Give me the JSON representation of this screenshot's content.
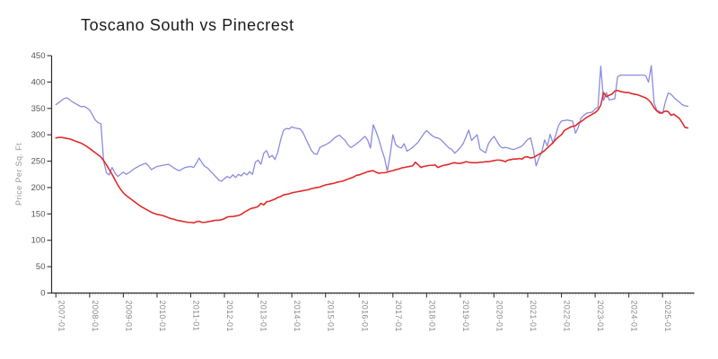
{
  "title": "Toscano South vs Pinecrest",
  "chart_data": {
    "type": "line",
    "title": "Toscano South vs Pinecrest",
    "xlabel": "",
    "ylabel": "Price Per Sq. Ft",
    "ylim": [
      0,
      450
    ],
    "y_ticks": [
      0,
      50,
      100,
      150,
      200,
      250,
      300,
      350,
      400,
      450
    ],
    "x_start": "2007-01",
    "x_interval": "monthly",
    "x_tick_labels": [
      "2007-01",
      "2008-01",
      "2009-01",
      "2010-01",
      "2011-01",
      "2012-01",
      "2013-01",
      "2014-01",
      "2015-01",
      "2016-01",
      "2017-01",
      "2018-01",
      "2019-01",
      "2020-01",
      "2021-01",
      "2022-01",
      "2023-01",
      "2024-01",
      "2025-01"
    ],
    "grid": false,
    "legend_position": "none",
    "series": [
      {
        "name": "Toscano South",
        "color": "#8b8be0",
        "values": [
          357,
          361,
          365,
          369,
          370,
          366,
          362,
          359,
          356,
          353,
          354,
          351,
          347,
          338,
          328,
          323,
          321,
          250,
          228,
          224,
          238,
          228,
          221,
          225,
          229,
          225,
          228,
          232,
          236,
          239,
          242,
          244,
          246,
          241,
          234,
          237,
          240,
          241,
          242,
          243,
          244,
          241,
          237,
          234,
          232,
          235,
          238,
          239,
          240,
          238,
          246,
          256,
          247,
          240,
          237,
          231,
          226,
          220,
          214,
          212,
          217,
          221,
          218,
          224,
          219,
          225,
          222,
          228,
          224,
          230,
          225,
          248,
          252,
          244,
          265,
          270,
          257,
          261,
          253,
          267,
          290,
          308,
          312,
          311,
          315,
          313,
          312,
          311,
          304,
          292,
          281,
          270,
          264,
          263,
          276,
          279,
          281,
          284,
          288,
          293,
          297,
          299,
          294,
          289,
          281,
          276,
          279,
          283,
          287,
          292,
          297,
          290,
          275,
          319,
          306,
          291,
          272,
          256,
          231,
          262,
          300,
          281,
          277,
          275,
          283,
          269,
          272,
          276,
          281,
          286,
          294,
          302,
          308,
          303,
          298,
          295,
          294,
          291,
          286,
          280,
          275,
          272,
          265,
          270,
          276,
          283,
          296,
          309,
          289,
          295,
          300,
          273,
          269,
          266,
          283,
          291,
          297,
          288,
          279,
          275,
          276,
          275,
          273,
          272,
          274,
          276,
          279,
          285,
          291,
          294,
          272,
          241,
          256,
          267,
          290,
          279,
          301,
          284,
          300,
          318,
          326,
          327,
          328,
          327,
          326,
          303,
          314,
          332,
          337,
          341,
          342,
          343,
          349,
          352,
          430,
          365,
          380,
          366,
          367,
          368,
          410,
          413,
          413,
          413,
          413,
          413,
          413,
          413,
          413,
          413,
          412,
          400,
          431,
          360,
          346,
          344,
          340,
          362,
          379,
          377,
          371,
          366,
          362,
          357,
          355,
          354
        ]
      },
      {
        "name": "Pinecrest",
        "color": "#e02b2b",
        "values": [
          294,
          295,
          295,
          294,
          293,
          292,
          290,
          288,
          286,
          284,
          281,
          278,
          274,
          270,
          266,
          262,
          258,
          251,
          243,
          234,
          225,
          215,
          205,
          197,
          190,
          185,
          181,
          177,
          173,
          169,
          165,
          162,
          159,
          156,
          153,
          151,
          149,
          148,
          147,
          145,
          143,
          141,
          140,
          138,
          137,
          136,
          135,
          134,
          134,
          133,
          135,
          136,
          134,
          134,
          135,
          136,
          137,
          138,
          138,
          139,
          141,
          144,
          145,
          145,
          146,
          147,
          149,
          153,
          156,
          159,
          161,
          162,
          164,
          170,
          167,
          173,
          174,
          176,
          178,
          181,
          183,
          186,
          187,
          188,
          190,
          191,
          192,
          193,
          194,
          195,
          196,
          198,
          199,
          200,
          201,
          203,
          205,
          206,
          207,
          208,
          210,
          211,
          212,
          214,
          216,
          218,
          220,
          223,
          224,
          226,
          228,
          230,
          231,
          232,
          229,
          227,
          228,
          228,
          229,
          231,
          232,
          234,
          235,
          237,
          238,
          239,
          240,
          241,
          248,
          243,
          238,
          240,
          241,
          242,
          242,
          243,
          238,
          240,
          242,
          243,
          244,
          246,
          247,
          246,
          246,
          247,
          249,
          248,
          247,
          247,
          247,
          248,
          248,
          249,
          249,
          250,
          251,
          252,
          252,
          251,
          249,
          252,
          253,
          254,
          254,
          255,
          254,
          258,
          258,
          256,
          257,
          260,
          263,
          266,
          270,
          275,
          280,
          285,
          291,
          296,
          300,
          308,
          311,
          314,
          316,
          317,
          322,
          325,
          329,
          333,
          336,
          339,
          342,
          347,
          356,
          380,
          372,
          375,
          377,
          383,
          384,
          382,
          381,
          380,
          380,
          378,
          377,
          376,
          374,
          372,
          370,
          366,
          360,
          351,
          345,
          341,
          342,
          345,
          344,
          337,
          339,
          335,
          331,
          323,
          314,
          313
        ]
      }
    ]
  }
}
